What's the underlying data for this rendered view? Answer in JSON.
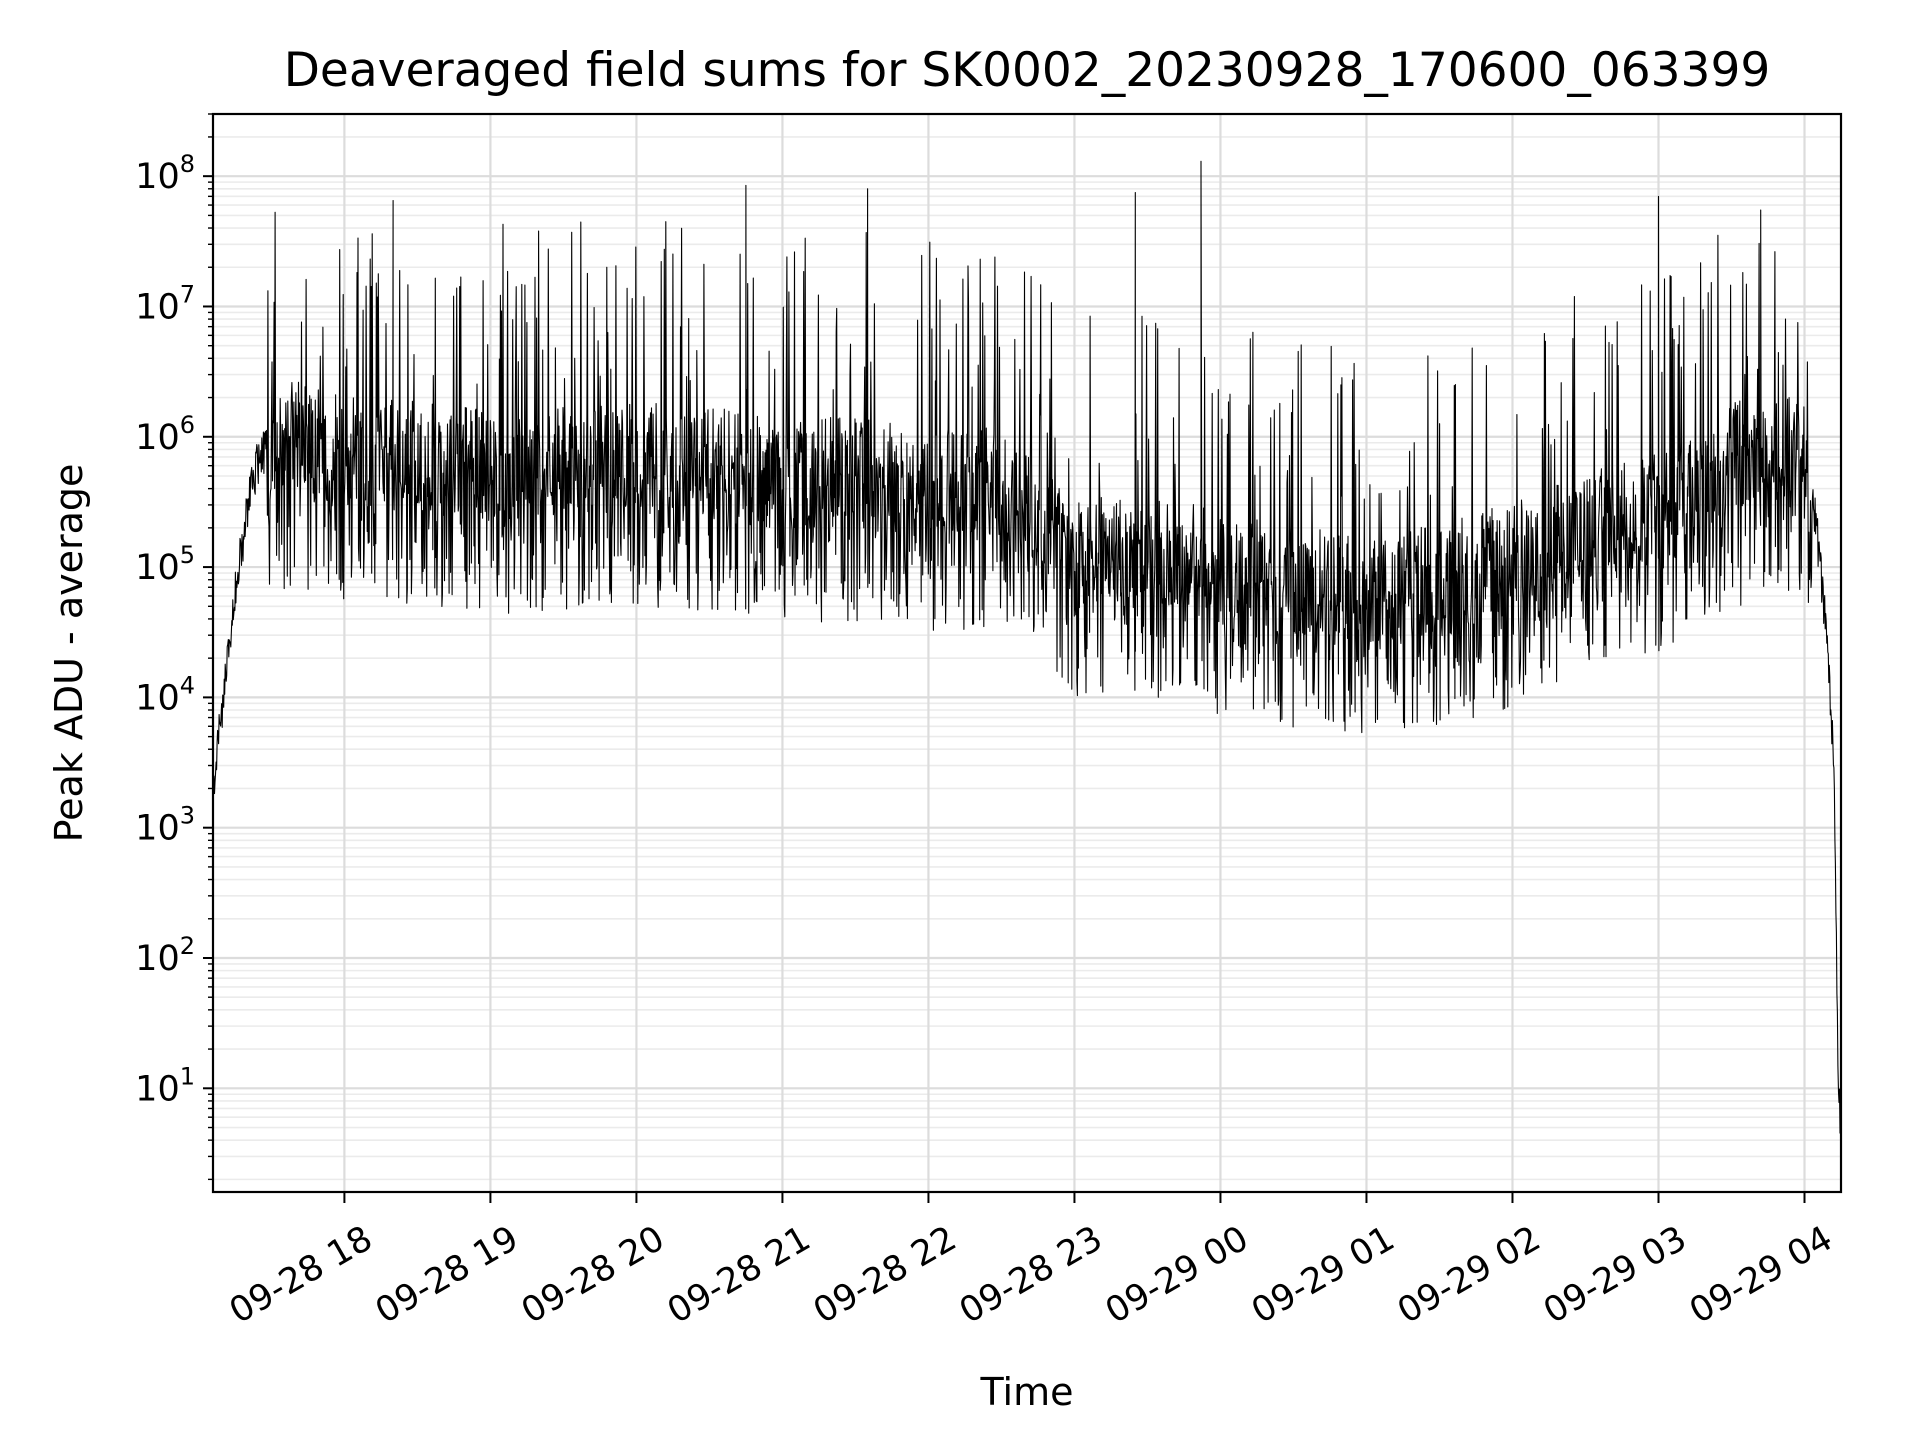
{
  "chart_data": {
    "type": "line",
    "title": "Deaveraged field sums for SK0002_20230928_170600_063399",
    "xlabel": "Time",
    "ylabel": "Peak ADU - average",
    "x_tick_labels": [
      "09-28 18",
      "09-28 19",
      "09-28 20",
      "09-28 21",
      "09-28 22",
      "09-28 23",
      "09-29 00",
      "09-29 01",
      "09-29 02",
      "09-29 03",
      "09-29 04"
    ],
    "y_tick_labels": [
      {
        "base": "10",
        "exp": "1"
      },
      {
        "base": "10",
        "exp": "2"
      },
      {
        "base": "10",
        "exp": "3"
      },
      {
        "base": "10",
        "exp": "4"
      },
      {
        "base": "10",
        "exp": "5"
      },
      {
        "base": "10",
        "exp": "6"
      },
      {
        "base": "10",
        "exp": "7"
      },
      {
        "base": "10",
        "exp": "8"
      }
    ],
    "yscale": "log",
    "xlim": [
      "2023-09-28 17:06",
      "2023-09-29 04:15"
    ],
    "ylim": [
      1.6,
      300000000
    ],
    "grid": true,
    "line_color": "#000000",
    "series": [
      {
        "x": [
          "2023-09-28 17:06",
          "2023-09-28 17:09",
          "2023-09-28 17:12",
          "2023-09-28 17:15",
          "2023-09-28 17:18",
          "2023-09-28 17:21",
          "2023-09-28 17:25",
          "2023-09-28 17:30",
          "2023-09-28 17:40",
          "2023-09-28 18:00",
          "2023-09-28 18:30",
          "2023-09-28 19:00",
          "2023-09-28 19:30",
          "2023-09-28 20:00",
          "2023-09-28 20:30",
          "2023-09-28 21:00",
          "2023-09-28 21:30",
          "2023-09-28 22:00",
          "2023-09-28 22:30",
          "2023-09-28 23:00",
          "2023-09-28 23:30",
          "2023-09-29 00:00",
          "2023-09-29 00:30",
          "2023-09-29 01:00",
          "2023-09-29 01:30",
          "2023-09-29 02:00",
          "2023-09-29 02:30",
          "2023-09-29 03:00",
          "2023-09-29 03:30",
          "2023-09-29 04:00",
          "2023-09-29 04:05",
          "2023-09-29 04:09",
          "2023-09-29 04:12",
          "2023-09-29 04:14",
          "2023-09-29 04:15"
        ],
        "y": [
          2000,
          6000,
          20000,
          60000,
          150000,
          350000,
          700000,
          900000,
          1000000,
          800000,
          700000,
          600000,
          650000,
          700000,
          650000,
          500000,
          550000,
          450000,
          450000,
          120000,
          150000,
          100000,
          80000,
          70000,
          80000,
          120000,
          200000,
          300000,
          700000,
          800000,
          200000,
          30000,
          3000,
          10,
          4
        ],
        "spike_maxima": [
          {
            "x": "2023-09-28 18:20",
            "y": 65000000
          },
          {
            "x": "2023-09-28 20:45",
            "y": 85000000
          },
          {
            "x": "2023-09-28 21:35",
            "y": 80000000
          },
          {
            "x": "2023-09-28 23:25",
            "y": 75000000
          },
          {
            "x": "2023-09-28 23:52",
            "y": 130000000
          },
          {
            "x": "2023-09-29 03:00",
            "y": 70000000
          },
          {
            "x": "2023-09-29 03:42",
            "y": 55000000
          }
        ]
      }
    ]
  }
}
